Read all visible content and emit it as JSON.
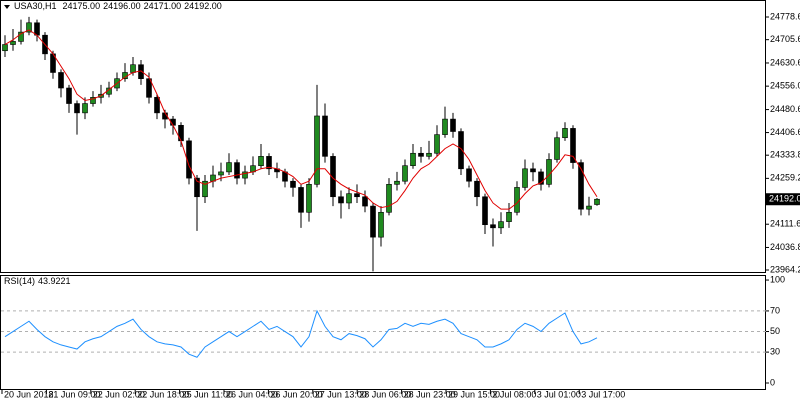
{
  "chart_data": {
    "type": "candlestick",
    "title": "USA30,H1",
    "header_values": [
      "24175.00",
      "24196.00",
      "24171.00",
      "24192.00"
    ],
    "up_color": "#1f8a1f",
    "down_color": "#000000",
    "ylim": [
      23957.8,
      24833.3
    ],
    "yticks": [
      {
        "value": 24778.6,
        "label": "24778.60"
      },
      {
        "value": 24705.6,
        "label": "24705.60"
      },
      {
        "value": 24630.6,
        "label": "24630.60"
      },
      {
        "value": 24556,
        "label": "24556.00"
      },
      {
        "value": 24480.6,
        "label": "24480.60"
      },
      {
        "value": 24406.6,
        "label": "24406.60"
      },
      {
        "value": 24333.8,
        "label": "24333.80"
      },
      {
        "value": 24259.2,
        "label": "24259.20"
      },
      {
        "value": 24111.6,
        "label": "24111.60"
      },
      {
        "value": 24036.8,
        "label": "24036.80"
      },
      {
        "value": 23964.2,
        "label": "23964.20"
      }
    ],
    "current_price": {
      "value": 24192,
      "label": "24192.00"
    },
    "x_labels": [
      "20 Jun 2018",
      "21 Jun 09:00",
      "22 Jun 02:00",
      "22 Jun 18:00",
      "25 Jun 11:00",
      "26 Jun 04:00",
      "26 Jun 20:00",
      "27 Jun 13:00",
      "28 Jun 06:00",
      "28 Jun 23:00",
      "29 Jun 15:00",
      "2 Jul 08:00",
      "3 Jul 01:00",
      "3 Jul 17:00"
    ],
    "open": [
      24670,
      24690,
      24700,
      24730,
      24760,
      24720,
      24660,
      24600,
      24550,
      24500,
      24470,
      24500,
      24520,
      24530,
      24550,
      24580,
      24600,
      24625,
      24580,
      24520,
      24470,
      24450,
      24430,
      24380,
      24260,
      24200,
      24250,
      24270,
      24280,
      24310,
      24260,
      24280,
      24300,
      24330,
      24290,
      24280,
      24250,
      24230,
      24150,
      24240,
      24460,
      24330,
      24200,
      24180,
      24210,
      24200,
      24170,
      24070,
      24150,
      24240,
      24250,
      24300,
      24340,
      24330,
      24340,
      24400,
      24450,
      24410,
      24290,
      24250,
      24200,
      24110,
      24100,
      24120,
      24150,
      24230,
      24290,
      24280,
      24240,
      24320,
      24390,
      24420,
      24310,
      24160,
      24175
    ],
    "high": [
      24720,
      24740,
      24770,
      24779,
      24770,
      24730,
      24670,
      24610,
      24560,
      24510,
      24520,
      24540,
      24560,
      24570,
      24600,
      24630,
      24650,
      24640,
      24600,
      24530,
      24480,
      24460,
      24440,
      24390,
      24270,
      24270,
      24300,
      24310,
      24340,
      24320,
      24300,
      24330,
      24370,
      24340,
      24310,
      24290,
      24260,
      24240,
      24260,
      24560,
      24500,
      24340,
      24220,
      24230,
      24240,
      24220,
      24180,
      24170,
      24260,
      24280,
      24320,
      24370,
      24360,
      24380,
      24430,
      24490,
      24470,
      24420,
      24300,
      24260,
      24210,
      24130,
      24150,
      24180,
      24250,
      24320,
      24310,
      24290,
      24340,
      24410,
      24440,
      24430,
      24320,
      24200,
      24196
    ],
    "low": [
      24650,
      24670,
      24690,
      24720,
      24700,
      24640,
      24580,
      24520,
      24470,
      24400,
      24450,
      24490,
      24500,
      24520,
      24540,
      24570,
      24590,
      24560,
      24500,
      24450,
      24420,
      24400,
      24360,
      24240,
      24090,
      24180,
      24230,
      24250,
      24270,
      24240,
      24240,
      24270,
      24290,
      24270,
      24260,
      24230,
      24200,
      24100,
      24120,
      24230,
      24310,
      24170,
      24130,
      24160,
      24180,
      24150,
      23960,
      24040,
      24140,
      24220,
      24240,
      24290,
      24310,
      24320,
      24330,
      24390,
      24390,
      24270,
      24230,
      24170,
      24080,
      24040,
      24080,
      24100,
      24140,
      24220,
      24250,
      24220,
      24230,
      24310,
      24380,
      24290,
      24140,
      24140,
      24171
    ],
    "close": [
      24690,
      24700,
      24730,
      24760,
      24720,
      24660,
      24600,
      24550,
      24500,
      24470,
      24500,
      24520,
      24530,
      24550,
      24580,
      24600,
      24625,
      24580,
      24520,
      24470,
      24450,
      24430,
      24380,
      24260,
      24200,
      24250,
      24270,
      24280,
      24310,
      24260,
      24280,
      24300,
      24330,
      24290,
      24280,
      24250,
      24230,
      24150,
      24240,
      24460,
      24330,
      24200,
      24180,
      24210,
      24200,
      24170,
      24070,
      24150,
      24240,
      24250,
      24300,
      24340,
      24330,
      24340,
      24400,
      24450,
      24410,
      24290,
      24250,
      24200,
      24110,
      24100,
      24120,
      24150,
      24230,
      24290,
      24280,
      24240,
      24320,
      24390,
      24420,
      24310,
      24160,
      24170,
      24192
    ],
    "ma_color": "#e00000",
    "ma_values": [
      24690,
      24705,
      24725,
      24737,
      24720,
      24690,
      24660,
      24620,
      24580,
      24530,
      24510,
      24515,
      24525,
      24545,
      24565,
      24585,
      24600,
      24605,
      24585,
      24530,
      24470,
      24430,
      24380,
      24300,
      24250,
      24240,
      24250,
      24260,
      24265,
      24270,
      24275,
      24280,
      24290,
      24295,
      24290,
      24280,
      24265,
      24240,
      24250,
      24290,
      24290,
      24260,
      24240,
      24225,
      24215,
      24205,
      24180,
      24165,
      24170,
      24185,
      24220,
      24260,
      24290,
      24305,
      24330,
      24355,
      24370,
      24355,
      24320,
      24270,
      24220,
      24180,
      24160,
      24160,
      24180,
      24210,
      24235,
      24245,
      24270,
      24300,
      24335,
      24330,
      24290,
      24240,
      24200
    ],
    "rsi": {
      "label": "RSI(14)",
      "color": "#1e90ff",
      "ylim": [
        -6.8,
        104.9
      ],
      "yticks": [
        100,
        70,
        50,
        30,
        0
      ],
      "levels": [
        70,
        50,
        30
      ],
      "values": [
        45,
        50,
        55,
        60,
        52,
        45,
        40,
        37,
        35,
        33,
        40,
        43,
        45,
        50,
        55,
        58,
        62,
        52,
        45,
        40,
        38,
        37,
        35,
        28,
        25,
        35,
        40,
        45,
        50,
        45,
        50,
        55,
        60,
        52,
        55,
        50,
        45,
        35,
        45,
        70,
        55,
        45,
        42,
        48,
        46,
        43,
        35,
        42,
        52,
        53,
        58,
        55,
        58,
        57,
        60,
        62,
        58,
        48,
        45,
        42,
        35,
        35,
        38,
        42,
        52,
        58,
        55,
        50,
        58,
        63,
        68,
        50,
        38,
        40,
        43.9221
      ]
    }
  }
}
